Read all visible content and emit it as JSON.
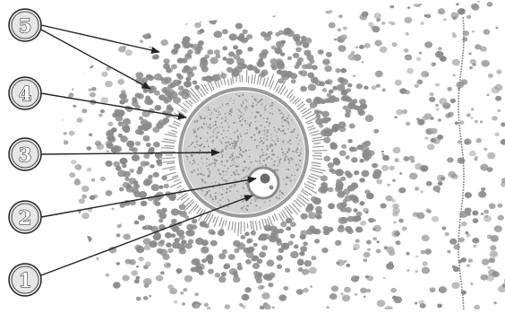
{
  "figure": {
    "description_labels": [],
    "callouts": [
      {
        "label": "5"
      },
      {
        "label": "4"
      },
      {
        "label": "3"
      },
      {
        "label": "2"
      },
      {
        "label": "1"
      }
    ],
    "colors": {
      "background": "#ffffff",
      "cell_fill": "#8a8a8a",
      "cell_fill_light": "#a6a6a6",
      "oocyte_fill": "#b3b3b3",
      "outline": "#222222",
      "callout_circle_fill": "#e6e6e6"
    }
  }
}
